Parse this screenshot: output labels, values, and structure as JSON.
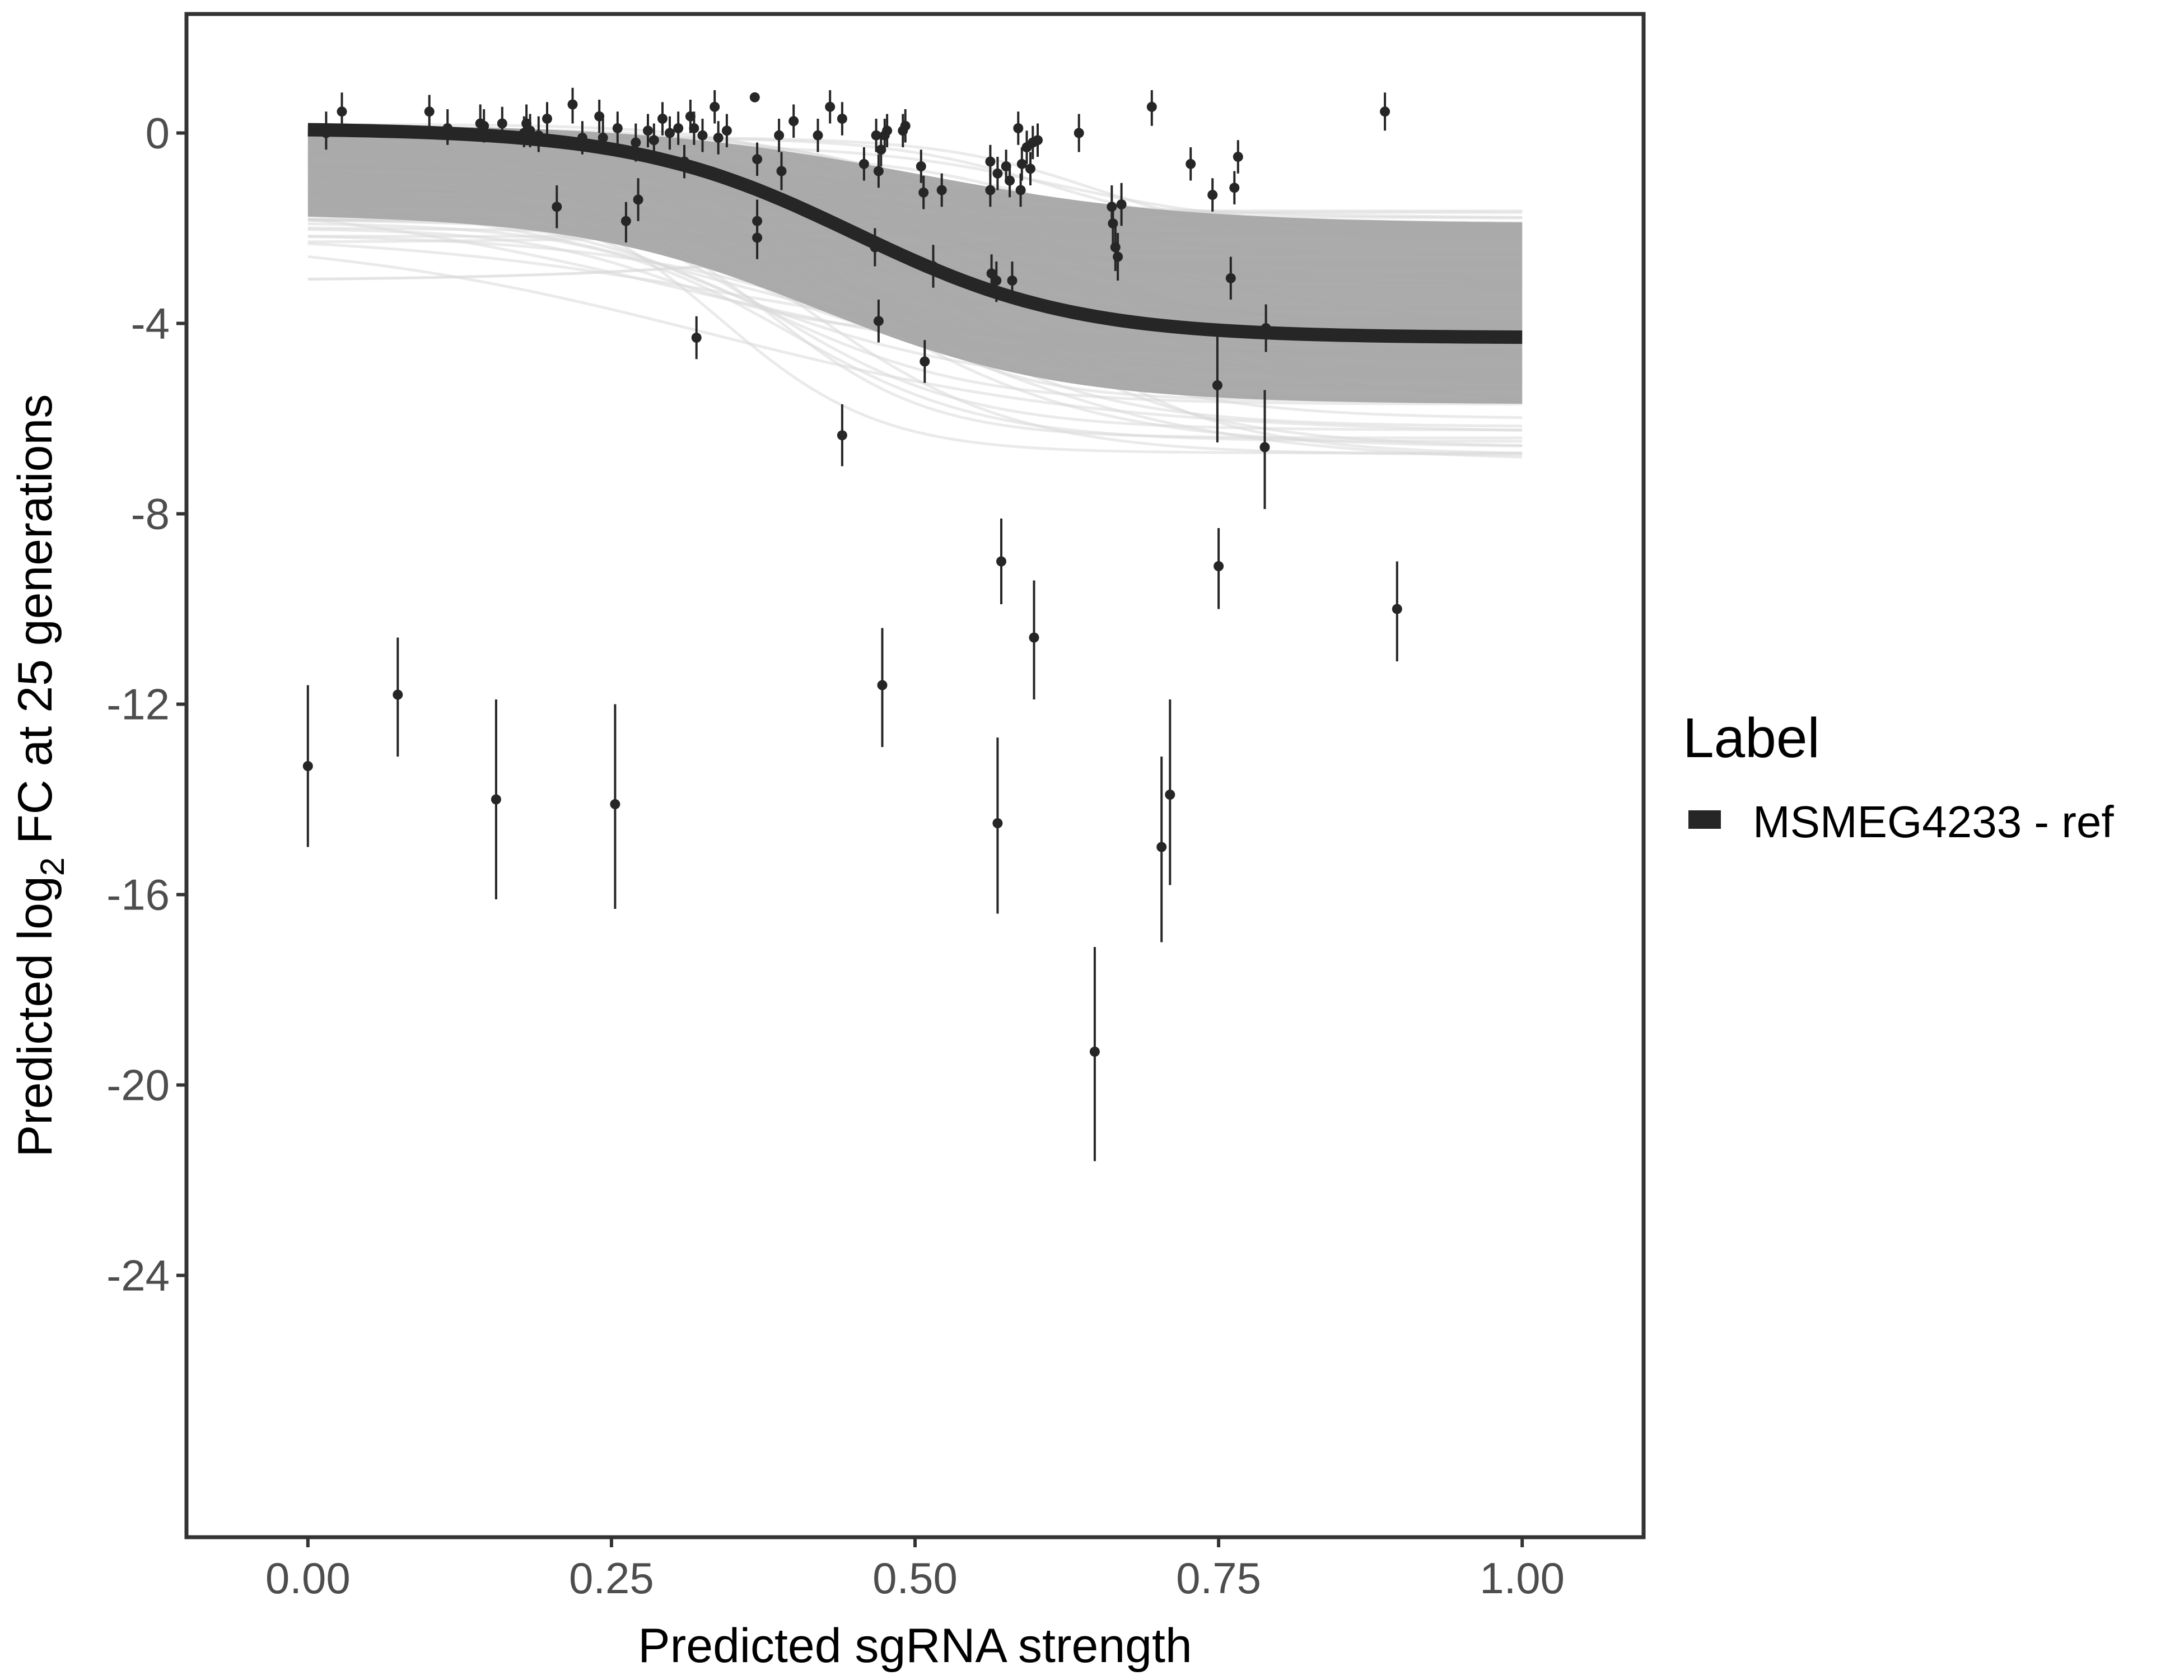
{
  "chart_data": {
    "type": "scatter",
    "title": "",
    "xlabel": "Predicted sgRNA strength",
    "ylabel_parts": {
      "pre": "Predicted  log",
      "sub": "2",
      "post": " FC at 25 generations"
    },
    "xlim": [
      -0.1,
      1.1
    ],
    "ylim": [
      -29.5,
      2.5
    ],
    "x_ticks": [
      0,
      0.25,
      0.5,
      0.75,
      1
    ],
    "x_tick_labels": [
      "0.00",
      "0.25",
      "0.50",
      "0.75",
      "1.00"
    ],
    "y_ticks": [
      0,
      -4,
      -8,
      -12,
      -16,
      -20,
      -24
    ],
    "y_tick_labels": [
      "0",
      "-4",
      "-8",
      "-12",
      "-16",
      "-20",
      "-24"
    ],
    "grid": false,
    "legend": {
      "title": "Label",
      "position": "right",
      "entries": [
        {
          "label": "MSMEG4233 - ref",
          "color": "#262626"
        }
      ]
    },
    "colors": {
      "fit_line": "#262626",
      "posterior_band": "#a6a6a6",
      "posterior_draws": "#d9d9d9",
      "points": "#262626",
      "frame": "#333333"
    },
    "fit_curve": {
      "name": "MSMEG4233 - ref",
      "model": "logistic",
      "upper": 0.1,
      "lower": -4.3,
      "midpoint": 0.45,
      "slope": 11,
      "x_range": [
        0,
        1
      ]
    },
    "posterior_band": {
      "upper_at_0": [
        0.2,
        -2.3
      ],
      "lower_at_1": [
        -1.5,
        -6.9
      ],
      "outlier_draw_at_0": -3.1
    },
    "points": [
      {
        "x": 0.0,
        "y": -13.3,
        "lo": -15.0,
        "hi": -11.6
      },
      {
        "x": 0.015,
        "y": 0.0,
        "lo": -0.35,
        "hi": 0.45
      },
      {
        "x": 0.028,
        "y": 0.45,
        "lo": 0.05,
        "hi": 0.85
      },
      {
        "x": 0.074,
        "y": -11.8,
        "lo": -13.1,
        "hi": -10.6
      },
      {
        "x": 0.1,
        "y": 0.45,
        "lo": 0.05,
        "hi": 0.8
      },
      {
        "x": 0.115,
        "y": 0.1,
        "lo": -0.25,
        "hi": 0.5
      },
      {
        "x": 0.142,
        "y": 0.2,
        "lo": -0.15,
        "hi": 0.6
      },
      {
        "x": 0.145,
        "y": 0.15,
        "lo": -0.2,
        "hi": 0.5
      },
      {
        "x": 0.155,
        "y": -14.0,
        "lo": -16.1,
        "hi": -11.9
      },
      {
        "x": 0.16,
        "y": 0.2,
        "lo": -0.15,
        "hi": 0.55
      },
      {
        "x": 0.178,
        "y": 0.0,
        "lo": -0.3,
        "hi": 0.35
      },
      {
        "x": 0.18,
        "y": 0.2,
        "lo": -0.15,
        "hi": 0.6
      },
      {
        "x": 0.183,
        "y": 0.05,
        "lo": -0.3,
        "hi": 0.4
      },
      {
        "x": 0.19,
        "y": -0.05,
        "lo": -0.4,
        "hi": 0.35
      },
      {
        "x": 0.197,
        "y": 0.3,
        "lo": -0.05,
        "hi": 0.65
      },
      {
        "x": 0.205,
        "y": -1.55,
        "lo": -2.0,
        "hi": -1.1
      },
      {
        "x": 0.218,
        "y": 0.6,
        "lo": 0.2,
        "hi": 0.95
      },
      {
        "x": 0.226,
        "y": -0.1,
        "lo": -0.45,
        "hi": 0.25
      },
      {
        "x": 0.24,
        "y": 0.35,
        "lo": 0.0,
        "hi": 0.7
      },
      {
        "x": 0.243,
        "y": -0.1,
        "lo": -0.45,
        "hi": 0.3
      },
      {
        "x": 0.255,
        "y": 0.1,
        "lo": -0.25,
        "hi": 0.45
      },
      {
        "x": 0.253,
        "y": -14.1,
        "lo": -16.3,
        "hi": -12.0
      },
      {
        "x": 0.262,
        "y": -1.85,
        "lo": -2.3,
        "hi": -1.45
      },
      {
        "x": 0.27,
        "y": -0.2,
        "lo": -0.6,
        "hi": 0.2
      },
      {
        "x": 0.272,
        "y": -1.4,
        "lo": -1.85,
        "hi": -0.95
      },
      {
        "x": 0.28,
        "y": 0.05,
        "lo": -0.3,
        "hi": 0.4
      },
      {
        "x": 0.285,
        "y": -0.15,
        "lo": -0.5,
        "hi": 0.2
      },
      {
        "x": 0.292,
        "y": 0.3,
        "lo": -0.05,
        "hi": 0.65
      },
      {
        "x": 0.298,
        "y": 0.0,
        "lo": -0.35,
        "hi": 0.35
      },
      {
        "x": 0.305,
        "y": 0.1,
        "lo": -0.25,
        "hi": 0.45
      },
      {
        "x": 0.31,
        "y": -0.6,
        "lo": -0.95,
        "hi": -0.25
      },
      {
        "x": 0.315,
        "y": 0.35,
        "lo": 0.0,
        "hi": 0.7
      },
      {
        "x": 0.318,
        "y": 0.1,
        "lo": -0.25,
        "hi": 0.45
      },
      {
        "x": 0.32,
        "y": -4.3,
        "lo": -4.75,
        "hi": -3.85
      },
      {
        "x": 0.325,
        "y": -0.05,
        "lo": -0.4,
        "hi": 0.3
      },
      {
        "x": 0.335,
        "y": 0.55,
        "lo": 0.2,
        "hi": 0.9
      },
      {
        "x": 0.338,
        "y": -0.1,
        "lo": -0.45,
        "hi": 0.25
      },
      {
        "x": 0.345,
        "y": 0.05,
        "lo": -0.3,
        "hi": 0.4
      },
      {
        "x": 0.368,
        "y": 0.75,
        "lo": 0.75,
        "hi": 0.75
      },
      {
        "x": 0.37,
        "y": -0.55,
        "lo": -0.9,
        "hi": -0.2
      },
      {
        "x": 0.37,
        "y": -1.85,
        "lo": -2.3,
        "hi": -1.4
      },
      {
        "x": 0.37,
        "y": -2.2,
        "lo": -2.65,
        "hi": -1.75
      },
      {
        "x": 0.388,
        "y": -0.05,
        "lo": -0.4,
        "hi": 0.3
      },
      {
        "x": 0.39,
        "y": -0.8,
        "lo": -1.2,
        "hi": -0.4
      },
      {
        "x": 0.4,
        "y": 0.25,
        "lo": -0.1,
        "hi": 0.6
      },
      {
        "x": 0.42,
        "y": -0.05,
        "lo": -0.4,
        "hi": 0.3
      },
      {
        "x": 0.43,
        "y": 0.55,
        "lo": 0.2,
        "hi": 0.9
      },
      {
        "x": 0.44,
        "y": 0.3,
        "lo": -0.05,
        "hi": 0.65
      },
      {
        "x": 0.44,
        "y": -6.35,
        "lo": -7.0,
        "hi": -5.7
      },
      {
        "x": 0.458,
        "y": -0.65,
        "lo": -1.0,
        "hi": -0.3
      },
      {
        "x": 0.467,
        "y": -2.4,
        "lo": -2.8,
        "hi": -2.0
      },
      {
        "x": 0.468,
        "y": -0.05,
        "lo": -0.4,
        "hi": 0.3
      },
      {
        "x": 0.47,
        "y": -0.8,
        "lo": -1.15,
        "hi": -0.45
      },
      {
        "x": 0.47,
        "y": -3.95,
        "lo": -4.4,
        "hi": -3.5
      },
      {
        "x": 0.472,
        "y": -0.35,
        "lo": -0.7,
        "hi": 0.0
      },
      {
        "x": 0.473,
        "y": -11.6,
        "lo": -12.9,
        "hi": -10.4
      },
      {
        "x": 0.475,
        "y": -0.05,
        "lo": -0.4,
        "hi": 0.3
      },
      {
        "x": 0.477,
        "y": 0.05,
        "lo": -0.3,
        "hi": 0.4
      },
      {
        "x": 0.49,
        "y": 0.05,
        "lo": -0.3,
        "hi": 0.4
      },
      {
        "x": 0.492,
        "y": 0.15,
        "lo": -0.2,
        "hi": 0.5
      },
      {
        "x": 0.505,
        "y": -0.7,
        "lo": -1.05,
        "hi": -0.35
      },
      {
        "x": 0.507,
        "y": -1.25,
        "lo": -1.6,
        "hi": -0.9
      },
      {
        "x": 0.508,
        "y": -4.8,
        "lo": -5.25,
        "hi": -4.35
      },
      {
        "x": 0.515,
        "y": -2.8,
        "lo": -3.25,
        "hi": -2.35
      },
      {
        "x": 0.522,
        "y": -1.2,
        "lo": -1.55,
        "hi": -0.85
      },
      {
        "x": 0.562,
        "y": -0.6,
        "lo": -0.95,
        "hi": -0.25
      },
      {
        "x": 0.562,
        "y": -1.2,
        "lo": -1.55,
        "hi": -0.85
      },
      {
        "x": 0.563,
        "y": -2.95,
        "lo": -3.35,
        "hi": -2.55
      },
      {
        "x": 0.567,
        "y": -3.1,
        "lo": -3.55,
        "hi": -2.7
      },
      {
        "x": 0.568,
        "y": -0.85,
        "lo": -1.2,
        "hi": -0.5
      },
      {
        "x": 0.568,
        "y": -14.5,
        "lo": -16.4,
        "hi": -12.7
      },
      {
        "x": 0.571,
        "y": -9.0,
        "lo": -9.9,
        "hi": -8.1
      },
      {
        "x": 0.575,
        "y": -0.7,
        "lo": -1.05,
        "hi": -0.35
      },
      {
        "x": 0.578,
        "y": -1.0,
        "lo": -1.35,
        "hi": -0.65
      },
      {
        "x": 0.58,
        "y": -3.1,
        "lo": -3.5,
        "hi": -2.7
      },
      {
        "x": 0.585,
        "y": 0.1,
        "lo": -0.25,
        "hi": 0.45
      },
      {
        "x": 0.587,
        "y": -1.2,
        "lo": -1.55,
        "hi": -0.85
      },
      {
        "x": 0.588,
        "y": -0.65,
        "lo": -1.0,
        "hi": -0.3
      },
      {
        "x": 0.592,
        "y": -0.3,
        "lo": -0.65,
        "hi": 0.05
      },
      {
        "x": 0.595,
        "y": -0.75,
        "lo": -1.1,
        "hi": -0.4
      },
      {
        "x": 0.597,
        "y": -0.2,
        "lo": -0.55,
        "hi": 0.15
      },
      {
        "x": 0.598,
        "y": -10.6,
        "lo": -11.9,
        "hi": -9.4
      },
      {
        "x": 0.601,
        "y": -0.15,
        "lo": -0.5,
        "hi": 0.2
      },
      {
        "x": 0.635,
        "y": 0.0,
        "lo": -0.4,
        "hi": 0.4
      },
      {
        "x": 0.648,
        "y": -19.3,
        "lo": -21.6,
        "hi": -17.1
      },
      {
        "x": 0.662,
        "y": -1.55,
        "lo": -2.0,
        "hi": -1.1
      },
      {
        "x": 0.663,
        "y": -1.9,
        "lo": -2.35,
        "hi": -1.45
      },
      {
        "x": 0.665,
        "y": -2.4,
        "lo": -2.9,
        "hi": -1.95
      },
      {
        "x": 0.667,
        "y": -2.6,
        "lo": -3.1,
        "hi": -2.1
      },
      {
        "x": 0.67,
        "y": -1.5,
        "lo": -1.95,
        "hi": -1.05
      },
      {
        "x": 0.695,
        "y": 0.55,
        "lo": 0.15,
        "hi": 0.9
      },
      {
        "x": 0.703,
        "y": -15.0,
        "lo": -17.0,
        "hi": -13.1
      },
      {
        "x": 0.71,
        "y": -13.9,
        "lo": -15.8,
        "hi": -11.9
      },
      {
        "x": 0.727,
        "y": -0.65,
        "lo": -1.0,
        "hi": -0.3
      },
      {
        "x": 0.745,
        "y": -1.3,
        "lo": -1.65,
        "hi": -0.95
      },
      {
        "x": 0.749,
        "y": -5.3,
        "lo": -6.5,
        "hi": -4.2
      },
      {
        "x": 0.75,
        "y": -9.1,
        "lo": -10.0,
        "hi": -8.3
      },
      {
        "x": 0.76,
        "y": -3.05,
        "lo": -3.5,
        "hi": -2.6
      },
      {
        "x": 0.763,
        "y": -1.15,
        "lo": -1.5,
        "hi": -0.8
      },
      {
        "x": 0.766,
        "y": -0.5,
        "lo": -0.85,
        "hi": -0.15
      },
      {
        "x": 0.788,
        "y": -6.6,
        "lo": -7.9,
        "hi": -5.4
      },
      {
        "x": 0.789,
        "y": -4.1,
        "lo": -4.6,
        "hi": -3.6
      },
      {
        "x": 0.887,
        "y": 0.45,
        "lo": 0.05,
        "hi": 0.85
      },
      {
        "x": 0.897,
        "y": -10.0,
        "lo": -11.1,
        "hi": -9.0
      }
    ]
  }
}
